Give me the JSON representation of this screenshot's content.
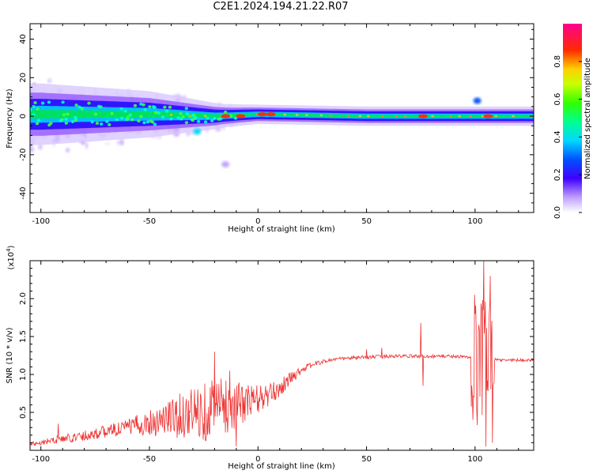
{
  "title": "C2E1.2024.194.21.22.R07",
  "chart_data": [
    {
      "type": "heatmap",
      "xlabel": "Height of straight line (km)",
      "ylabel": "Frequency (Hz)",
      "xlim": [
        -105,
        127
      ],
      "ylim": [
        -50,
        48
      ],
      "x_ticks": [
        -100,
        -50,
        0,
        50,
        100
      ],
      "y_ticks": [
        -40,
        -20,
        0,
        20,
        40
      ],
      "colorbar": {
        "label": "Normalized spectral amplitude",
        "range": [
          0,
          1
        ],
        "ticks": [
          0.0,
          0.2,
          0.4,
          0.6,
          0.8
        ]
      },
      "ridge_center_hz": [
        {
          "x": -100,
          "y": 1
        },
        {
          "x": -50,
          "y": 1
        },
        {
          "x": -20,
          "y": 0
        },
        {
          "x": 0,
          "y": 1
        },
        {
          "x": 50,
          "y": 0
        },
        {
          "x": 100,
          "y": 0
        },
        {
          "x": 127,
          "y": 0
        }
      ],
      "ridge_halfwidth_hz": [
        {
          "x": -100,
          "y": 8
        },
        {
          "x": -50,
          "y": 6
        },
        {
          "x": -15,
          "y": 3
        },
        {
          "x": 0,
          "y": 2.5
        },
        {
          "x": 50,
          "y": 2.5
        },
        {
          "x": 127,
          "y": 2.5
        }
      ],
      "scatter_halfwidth_hz": [
        {
          "x": -105,
          "y": 18
        },
        {
          "x": -75,
          "y": 14
        },
        {
          "x": -50,
          "y": 10
        },
        {
          "x": -30,
          "y": 8
        },
        {
          "x": -14,
          "y": 5
        }
      ],
      "features": [
        {
          "x": -15,
          "y": 0,
          "value": 0.95
        },
        {
          "x": -8,
          "y": 0,
          "value": 0.95
        },
        {
          "x": 2,
          "y": 1,
          "value": 0.95
        },
        {
          "x": 6,
          "y": 1,
          "value": 0.95
        },
        {
          "x": 76,
          "y": 0,
          "value": 0.9
        },
        {
          "x": 106,
          "y": 0,
          "value": 0.95
        },
        {
          "x": -28,
          "y": -8,
          "value": 0.4
        },
        {
          "x": 101,
          "y": 8,
          "value": 0.3
        },
        {
          "x": -15,
          "y": -25,
          "value": 0.1
        }
      ]
    },
    {
      "type": "line",
      "xlabel": "Height of straight line (km)",
      "ylabel": "SNR (10 * v/v)",
      "y_multiplier": "(x10",
      "y_multiplier_exp": "4",
      "xlim": [
        -105,
        127
      ],
      "ylim": [
        0,
        2.5
      ],
      "x_ticks": [
        -100,
        -50,
        0,
        50,
        100
      ],
      "y_ticks": [
        0.5,
        1.0,
        1.5,
        2.0
      ],
      "color": "#ee3333",
      "baseline": [
        {
          "x": -105,
          "y": 0.08
        },
        {
          "x": -95,
          "y": 0.13
        },
        {
          "x": -85,
          "y": 0.17
        },
        {
          "x": -75,
          "y": 0.22
        },
        {
          "x": -65,
          "y": 0.28
        },
        {
          "x": -55,
          "y": 0.34
        },
        {
          "x": -45,
          "y": 0.4
        },
        {
          "x": -35,
          "y": 0.46
        },
        {
          "x": -25,
          "y": 0.52
        },
        {
          "x": -15,
          "y": 0.58
        },
        {
          "x": -5,
          "y": 0.63
        },
        {
          "x": 5,
          "y": 0.72
        },
        {
          "x": 10,
          "y": 0.82
        },
        {
          "x": 15,
          "y": 0.95
        },
        {
          "x": 20,
          "y": 1.06
        },
        {
          "x": 25,
          "y": 1.13
        },
        {
          "x": 30,
          "y": 1.17
        },
        {
          "x": 35,
          "y": 1.2
        },
        {
          "x": 45,
          "y": 1.22
        },
        {
          "x": 60,
          "y": 1.24
        },
        {
          "x": 75,
          "y": 1.24
        },
        {
          "x": 90,
          "y": 1.24
        },
        {
          "x": 100,
          "y": 1.22
        },
        {
          "x": 110,
          "y": 1.19
        },
        {
          "x": 127,
          "y": 1.19
        }
      ],
      "noise_amplitude": [
        {
          "x": -105,
          "y": 0.03
        },
        {
          "x": -60,
          "y": 0.1
        },
        {
          "x": -35,
          "y": 0.3
        },
        {
          "x": -20,
          "y": 0.45
        },
        {
          "x": -10,
          "y": 0.3
        },
        {
          "x": 5,
          "y": 0.15
        },
        {
          "x": 20,
          "y": 0.05
        },
        {
          "x": 30,
          "y": 0.025
        },
        {
          "x": 127,
          "y": 0.02
        }
      ],
      "features": [
        {
          "x": -92,
          "y": 0.35
        },
        {
          "x": -20,
          "y": 1.3
        },
        {
          "x": -13,
          "y": 1.05
        },
        {
          "x": -10,
          "y": 0.05
        },
        {
          "x": 50,
          "y": 1.33
        },
        {
          "x": 57,
          "y": 1.35
        },
        {
          "x": 75,
          "y": 1.68
        },
        {
          "x": 76,
          "y": 0.85
        },
        {
          "x": 100,
          "y": 1.8
        },
        {
          "x": 104,
          "y": 2.5
        },
        {
          "x": 105,
          "y": 0.05
        },
        {
          "x": 107,
          "y": 2.3
        },
        {
          "x": 108,
          "y": 0.1
        }
      ]
    }
  ]
}
